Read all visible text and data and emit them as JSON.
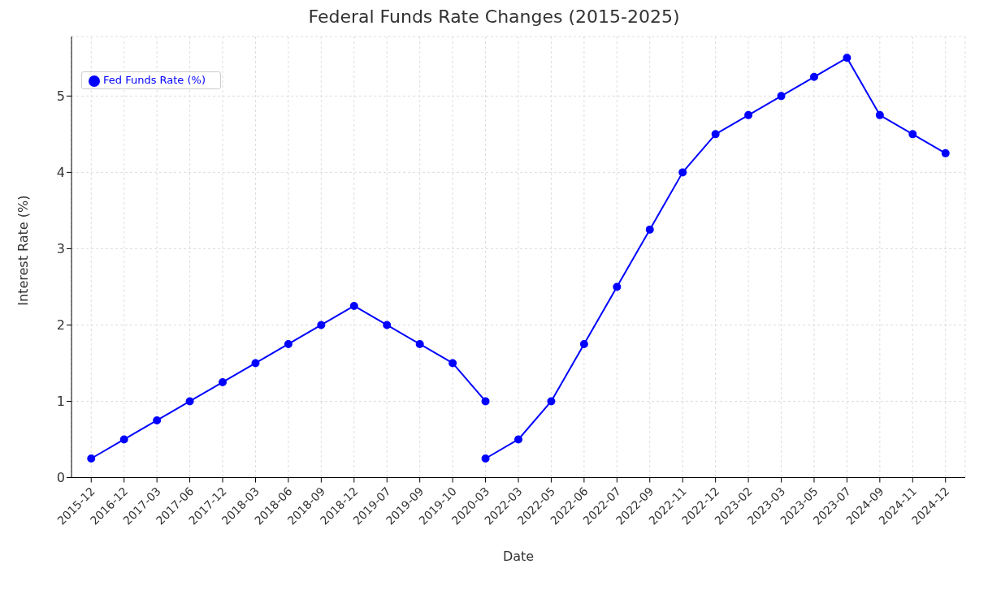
{
  "chart_data": {
    "type": "line",
    "title": "Federal Funds Rate Changes (2015-2025)",
    "xlabel": "Date",
    "ylabel": "Interest Rate (%)",
    "categories": [
      "2015-12",
      "2016-12",
      "2017-03",
      "2017-06",
      "2017-12",
      "2018-03",
      "2018-06",
      "2018-09",
      "2018-12",
      "2019-07",
      "2019-09",
      "2019-10",
      "2020-03",
      "2022-03",
      "2022-05",
      "2022-06",
      "2022-07",
      "2022-09",
      "2022-11",
      "2022-12",
      "2023-02",
      "2023-03",
      "2023-05",
      "2023-07",
      "2024-09",
      "2024-11",
      "2024-12"
    ],
    "series": [
      {
        "name": "Fed Funds Rate (%)",
        "color": "#0000ff",
        "values": [
          0.25,
          0.5,
          0.75,
          1,
          1.25,
          1.5,
          1.75,
          2,
          2.25,
          2,
          1.75,
          1.5,
          1,
          null,
          null,
          null,
          null,
          null,
          null,
          null,
          null,
          null,
          null,
          null,
          null,
          null,
          null
        ]
      },
      {
        "color": "#0000ff",
        "values": [
          null,
          null,
          null,
          null,
          null,
          null,
          null,
          null,
          null,
          null,
          null,
          null,
          0.25,
          0.5,
          1,
          1.75,
          2.5,
          3.25,
          4,
          4.5,
          4.75,
          5,
          5.25,
          5.5,
          4.75,
          4.5,
          4.25
        ]
      }
    ],
    "ylim": [
      0,
      5.78
    ],
    "yticks": [
      0,
      1,
      2,
      3,
      4,
      5
    ],
    "grid": true,
    "legend": "top left",
    "marker": "circle",
    "line_style": "solid"
  }
}
